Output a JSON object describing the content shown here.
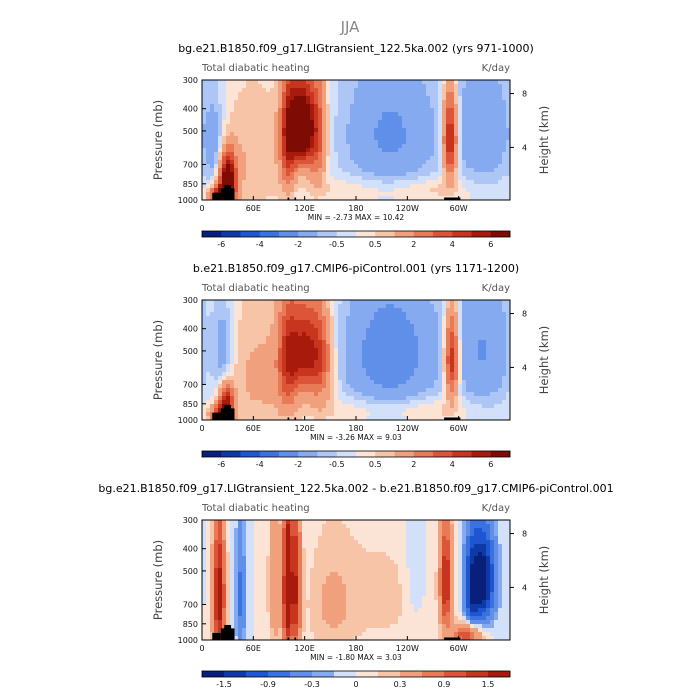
{
  "suptitle": "JJA",
  "chart_data": [
    {
      "type": "heatmap",
      "title": "bg.e21.B1850.f09_g17.LIGtransient_122.5ka.002 (yrs 971-1000)",
      "left_label": "Total diabatic heating",
      "right_label": "K/day",
      "ylabel": "Pressure (mb)",
      "ylabel_right": "Height (km)",
      "x_ticks": [
        "0",
        "60E",
        "120E",
        "180",
        "120W",
        "60W"
      ],
      "x_tick_lon": [
        0,
        60,
        120,
        180,
        240,
        300
      ],
      "y_ticks": [
        "300",
        "400",
        "500",
        "700",
        "850",
        "1000"
      ],
      "y_tick_p": [
        300,
        400,
        500,
        700,
        850,
        1000
      ],
      "height_ticks": [
        "8",
        "4"
      ],
      "height_tick_km": [
        8,
        4
      ],
      "stats": "MIN =   -2.73   MAX =   10.42",
      "colorbar_labels": [
        "-6",
        "-4",
        "-2",
        "-0.5",
        "0.5",
        "2",
        "4",
        "6"
      ],
      "levels": [
        -7,
        -6,
        -5,
        -4,
        -3,
        -2,
        -1,
        -0.5,
        0,
        0.5,
        1,
        2,
        3,
        4,
        5,
        6,
        7
      ],
      "colors": [
        "#08207a",
        "#0d3aa8",
        "#1e55d0",
        "#3a73e0",
        "#5f8fe8",
        "#86aaf0",
        "#adc6f5",
        "#d2e0fa",
        "#fbe3d6",
        "#f7c4a8",
        "#f1a07e",
        "#e87a57",
        "#dc5538",
        "#c8351f",
        "#a81a0c",
        "#7f0b05"
      ],
      "features": [
        {
          "lon": 30,
          "p": 820,
          "slon": 7,
          "sp": 140,
          "amp": 8
        },
        {
          "lon": 20,
          "p": 950,
          "slon": 8,
          "sp": 60,
          "amp": 5
        },
        {
          "lon": 115,
          "p": 480,
          "slon": 11,
          "sp": 140,
          "amp": 9
        },
        {
          "lon": 100,
          "p": 560,
          "slon": 6,
          "sp": 220,
          "amp": 3.5
        },
        {
          "lon": 135,
          "p": 520,
          "slon": 8,
          "sp": 220,
          "amp": 3
        },
        {
          "lon": 290,
          "p": 540,
          "slon": 6,
          "sp": 170,
          "amp": 6
        },
        {
          "lon": 60,
          "p": 650,
          "slon": 30,
          "sp": 300,
          "amp": 1
        },
        {
          "lon": 15,
          "p": 600,
          "slon": 8,
          "sp": 200,
          "amp": -1.5
        },
        {
          "lon": 220,
          "p": 520,
          "slon": 40,
          "sp": 250,
          "amp": -2.2
        },
        {
          "lon": 330,
          "p": 500,
          "slon": 25,
          "sp": 250,
          "amp": -1.8
        },
        {
          "lon": 270,
          "p": 900,
          "slon": 35,
          "sp": 80,
          "amp": 0.8
        },
        {
          "lon": 180,
          "p": 900,
          "slon": 40,
          "sp": 80,
          "amp": 0.6
        }
      ]
    },
    {
      "type": "heatmap",
      "title": "b.e21.B1850.f09_g17.CMIP6-piControl.001 (yrs 1171-1200)",
      "left_label": "Total diabatic heating",
      "right_label": "K/day",
      "ylabel": "Pressure (mb)",
      "ylabel_right": "Height (km)",
      "x_ticks": [
        "0",
        "60E",
        "120E",
        "180",
        "120W",
        "60W"
      ],
      "x_tick_lon": [
        0,
        60,
        120,
        180,
        240,
        300
      ],
      "y_ticks": [
        "300",
        "400",
        "500",
        "700",
        "850",
        "1000"
      ],
      "y_tick_p": [
        300,
        400,
        500,
        700,
        850,
        1000
      ],
      "height_ticks": [
        "8",
        "4"
      ],
      "height_tick_km": [
        8,
        4
      ],
      "stats": "MIN =   -3.26   MAX =    9.03",
      "colorbar_labels": [
        "-6",
        "-4",
        "-2",
        "-0.5",
        "0.5",
        "2",
        "4",
        "6"
      ],
      "levels": [
        -7,
        -6,
        -5,
        -4,
        -3,
        -2,
        -1,
        -0.5,
        0,
        0.5,
        1,
        2,
        3,
        4,
        5,
        6,
        7
      ],
      "colors": [
        "#08207a",
        "#0d3aa8",
        "#1e55d0",
        "#3a73e0",
        "#5f8fe8",
        "#86aaf0",
        "#adc6f5",
        "#d2e0fa",
        "#fbe3d6",
        "#f7c4a8",
        "#f1a07e",
        "#e87a57",
        "#dc5538",
        "#c8351f",
        "#a81a0c",
        "#7f0b05"
      ],
      "features": [
        {
          "lon": 28,
          "p": 850,
          "slon": 6,
          "sp": 120,
          "amp": 6
        },
        {
          "lon": 20,
          "p": 950,
          "slon": 8,
          "sp": 60,
          "amp": 4
        },
        {
          "lon": 120,
          "p": 500,
          "slon": 14,
          "sp": 160,
          "amp": 5
        },
        {
          "lon": 100,
          "p": 550,
          "slon": 8,
          "sp": 220,
          "amp": 3
        },
        {
          "lon": 140,
          "p": 560,
          "slon": 10,
          "sp": 200,
          "amp": 2.5
        },
        {
          "lon": 292,
          "p": 540,
          "slon": 6,
          "sp": 170,
          "amp": 5.5
        },
        {
          "lon": 70,
          "p": 650,
          "slon": 35,
          "sp": 300,
          "amp": 1.2
        },
        {
          "lon": 25,
          "p": 550,
          "slon": 8,
          "sp": 200,
          "amp": -1.8
        },
        {
          "lon": 220,
          "p": 520,
          "slon": 40,
          "sp": 250,
          "amp": -2.8
        },
        {
          "lon": 330,
          "p": 500,
          "slon": 25,
          "sp": 250,
          "amp": -2
        },
        {
          "lon": 270,
          "p": 900,
          "slon": 35,
          "sp": 80,
          "amp": 0.8
        },
        {
          "lon": 180,
          "p": 900,
          "slon": 40,
          "sp": 80,
          "amp": 0.6
        }
      ]
    },
    {
      "type": "heatmap",
      "title": "bg.e21.B1850.f09_g17.LIGtransient_122.5ka.002 - b.e21.B1850.f09_g17.CMIP6-piControl.001",
      "left_label": "Total diabatic heating",
      "right_label": "K/day",
      "ylabel": "Pressure (mb)",
      "ylabel_right": "Height (km)",
      "x_ticks": [
        "0",
        "60E",
        "120E",
        "180",
        "120W",
        "60W"
      ],
      "x_tick_lon": [
        0,
        60,
        120,
        180,
        240,
        300
      ],
      "y_ticks": [
        "300",
        "400",
        "500",
        "700",
        "850",
        "1000"
      ],
      "y_tick_p": [
        300,
        400,
        500,
        700,
        850,
        1000
      ],
      "height_ticks": [
        "8",
        "4"
      ],
      "height_tick_km": [
        8,
        4
      ],
      "stats": "MIN =   -1.80   MAX =    3.03",
      "colorbar_labels": [
        "-1.5",
        "-0.9",
        "-0.3",
        "0",
        "0.3",
        "0.9",
        "1.5"
      ],
      "levels": [
        -1.8,
        -1.5,
        -1.2,
        -0.9,
        -0.6,
        -0.3,
        -0.15,
        0,
        0.15,
        0.3,
        0.6,
        0.9,
        1.2,
        1.5,
        1.8
      ],
      "colors": [
        "#08207a",
        "#0d3aa8",
        "#1e55d0",
        "#3a73e0",
        "#5f8fe8",
        "#86aaf0",
        "#d2e0fa",
        "#fbe3d6",
        "#f7c4a8",
        "#f1a07e",
        "#e87a57",
        "#dc5538",
        "#c8351f",
        "#a81a0c"
      ],
      "features": [
        {
          "lon": 20,
          "p": 650,
          "slon": 5,
          "sp": 300,
          "amp": 1.8
        },
        {
          "lon": 100,
          "p": 600,
          "slon": 4,
          "sp": 350,
          "amp": 2
        },
        {
          "lon": 110,
          "p": 600,
          "slon": 4,
          "sp": 350,
          "amp": 1.4
        },
        {
          "lon": 45,
          "p": 650,
          "slon": 4,
          "sp": 280,
          "amp": -0.7
        },
        {
          "lon": 85,
          "p": 600,
          "slon": 5,
          "sp": 300,
          "amp": 0.6
        },
        {
          "lon": 150,
          "p": 700,
          "slon": 20,
          "sp": 300,
          "amp": 0.3
        },
        {
          "lon": 210,
          "p": 650,
          "slon": 40,
          "sp": 300,
          "amp": 0.2
        },
        {
          "lon": 328,
          "p": 550,
          "slon": 10,
          "sp": 180,
          "amp": -1.8
        },
        {
          "lon": 315,
          "p": 600,
          "slon": 6,
          "sp": 200,
          "amp": -1
        },
        {
          "lon": 285,
          "p": 560,
          "slon": 5,
          "sp": 220,
          "amp": 1.5
        },
        {
          "lon": 310,
          "p": 950,
          "slon": 12,
          "sp": 80,
          "amp": 1.2
        },
        {
          "lon": 250,
          "p": 500,
          "slon": 8,
          "sp": 200,
          "amp": -0.25
        }
      ]
    }
  ]
}
